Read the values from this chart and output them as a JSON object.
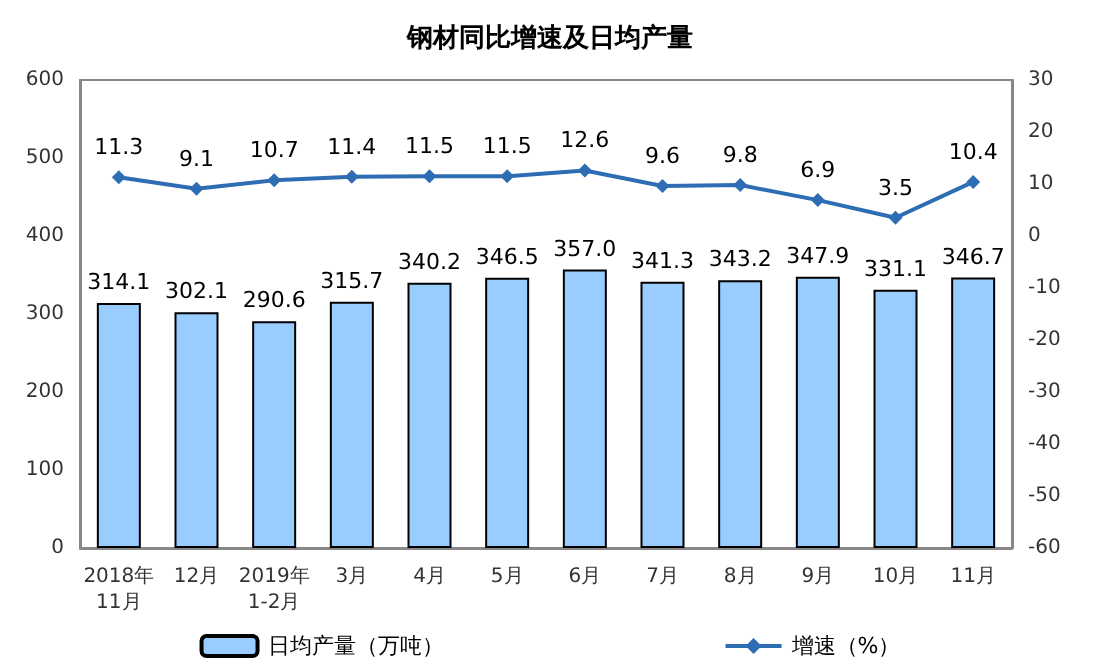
{
  "chart_data": {
    "type": "bar",
    "title": "钢材同比增速及日均产量",
    "categories": [
      "2018年\n11月",
      "12月",
      "2019年\n1-2月",
      "3月",
      "4月",
      "5月",
      "6月",
      "7月",
      "8月",
      "9月",
      "10月",
      "11月"
    ],
    "series": [
      {
        "name": "日均产量（万吨）",
        "color": "#99ccff",
        "values": [
          314.1,
          302.1,
          290.6,
          315.7,
          340.2,
          346.5,
          357.0,
          341.3,
          343.2,
          347.9,
          331.1,
          346.7
        ],
        "value_labels": [
          "314.1",
          "302.1",
          "290.6",
          "315.7",
          "340.2",
          "346.5",
          "357.0",
          "341.3",
          "343.2",
          "347.9",
          "331.1",
          "346.7"
        ]
      },
      {
        "name": "增速（%）",
        "type": "line",
        "axis": "y2",
        "color": "#2e6db4",
        "values": [
          11.3,
          9.1,
          10.7,
          11.4,
          11.5,
          11.5,
          12.6,
          9.6,
          9.8,
          6.9,
          3.5,
          10.4
        ],
        "value_labels": [
          "11.3",
          "9.1",
          "10.7",
          "11.4",
          "11.5",
          "11.5",
          "12.6",
          "9.6",
          "9.8",
          "6.9",
          "3.5",
          "10.4"
        ]
      }
    ],
    "ylim": [
      0,
      600
    ],
    "yticks": [
      0,
      100,
      200,
      300,
      400,
      500,
      600
    ],
    "y2lim": [
      -60,
      30
    ],
    "y2ticks": [
      -60,
      -50,
      -40,
      -30,
      -20,
      -10,
      0,
      10,
      20,
      30
    ],
    "grid": false,
    "legend": "bottom",
    "marker": "diamond",
    "line_style": "solid"
  }
}
